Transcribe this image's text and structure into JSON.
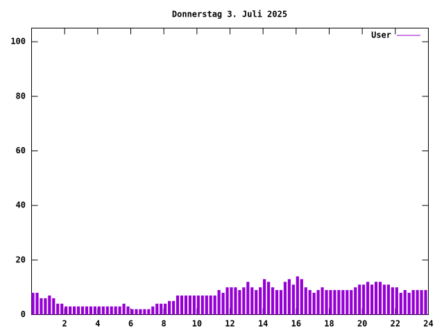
{
  "chart_data": {
    "type": "impulses",
    "title": "Donnerstag 3. Juli 2025",
    "x": [
      0,
      0.25,
      0.5,
      0.75,
      1,
      1.25,
      1.5,
      1.75,
      2,
      2.25,
      2.5,
      2.75,
      3,
      3.25,
      3.5,
      3.75,
      4,
      4.25,
      4.5,
      4.75,
      5,
      5.25,
      5.5,
      5.75,
      6,
      6.25,
      6.5,
      6.75,
      7,
      7.25,
      7.5,
      7.75,
      8,
      8.25,
      8.5,
      8.75,
      9,
      9.25,
      9.5,
      9.75,
      10,
      10.25,
      10.5,
      10.75,
      11,
      11.25,
      11.5,
      11.75,
      12,
      12.25,
      12.5,
      12.75,
      13,
      13.25,
      13.5,
      13.75,
      14,
      14.25,
      14.5,
      14.75,
      15,
      15.25,
      15.5,
      15.75,
      16,
      16.25,
      16.5,
      16.75,
      17,
      17.25,
      17.5,
      17.75,
      18,
      18.25,
      18.5,
      18.75,
      19,
      19.25,
      19.5,
      19.75,
      20,
      20.25,
      20.5,
      20.75,
      21,
      21.25,
      21.5,
      21.75,
      22,
      22.25,
      22.5,
      22.75,
      23,
      23.25,
      23.5,
      23.75
    ],
    "series": [
      {
        "name": "User",
        "color": "#9400d3",
        "values": [
          8,
          8,
          6,
          6,
          7,
          6,
          4,
          4,
          3,
          3,
          3,
          3,
          3,
          3,
          3,
          3,
          3,
          3,
          3,
          3,
          3,
          3,
          4,
          3,
          2,
          2,
          2,
          2,
          2,
          3,
          4,
          4,
          4,
          5,
          5,
          7,
          7,
          7,
          7,
          7,
          7,
          7,
          7,
          7,
          7,
          9,
          8,
          10,
          10,
          10,
          9,
          10,
          12,
          10,
          9,
          10,
          13,
          12,
          10,
          9,
          9,
          12,
          13,
          11,
          14,
          13,
          10,
          9,
          8,
          9,
          10,
          9,
          9,
          9,
          9,
          9,
          9,
          9,
          10,
          11,
          11,
          12,
          11,
          12,
          12,
          11,
          11,
          10,
          10,
          8,
          9,
          8,
          9,
          9,
          9,
          9
        ]
      }
    ],
    "xlim": [
      0,
      24
    ],
    "xticks": [
      2,
      4,
      6,
      8,
      10,
      12,
      14,
      16,
      18,
      20,
      22,
      24
    ],
    "ylim": [
      0,
      105
    ],
    "yticks": [
      0,
      20,
      40,
      60,
      80,
      100
    ],
    "legend": "top-right"
  }
}
